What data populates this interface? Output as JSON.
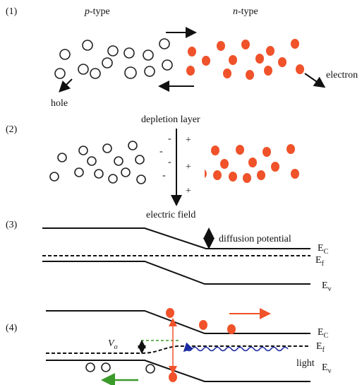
{
  "panel1": {
    "label": "(1)",
    "p_type": {
      "letter": "p",
      "rest": "-type"
    },
    "n_type": {
      "letter": "n",
      "rest": "-type"
    },
    "hole": "hole",
    "electron": "electron"
  },
  "panel2": {
    "label": "(2)",
    "depletion_layer": "depletion layer",
    "minus": [
      "-",
      "-",
      "-",
      "-"
    ],
    "plus": [
      "+",
      "+",
      "+"
    ],
    "electric_field": "electric field"
  },
  "panel3": {
    "label": "(3)",
    "diffusion_potential": "diffusion potential",
    "ec": {
      "main": "E",
      "sub": "C"
    },
    "ef": {
      "main": "E",
      "sub": "f"
    },
    "ev": {
      "main": "E",
      "sub": "v"
    }
  },
  "panel4": {
    "label": "(4)",
    "vo": {
      "main": "V",
      "sub": "o"
    },
    "light": "light",
    "ec": {
      "main": "E",
      "sub": "C"
    },
    "ef": {
      "main": "E",
      "sub": "f"
    },
    "ev": {
      "main": "E",
      "sub": "v"
    }
  }
}
